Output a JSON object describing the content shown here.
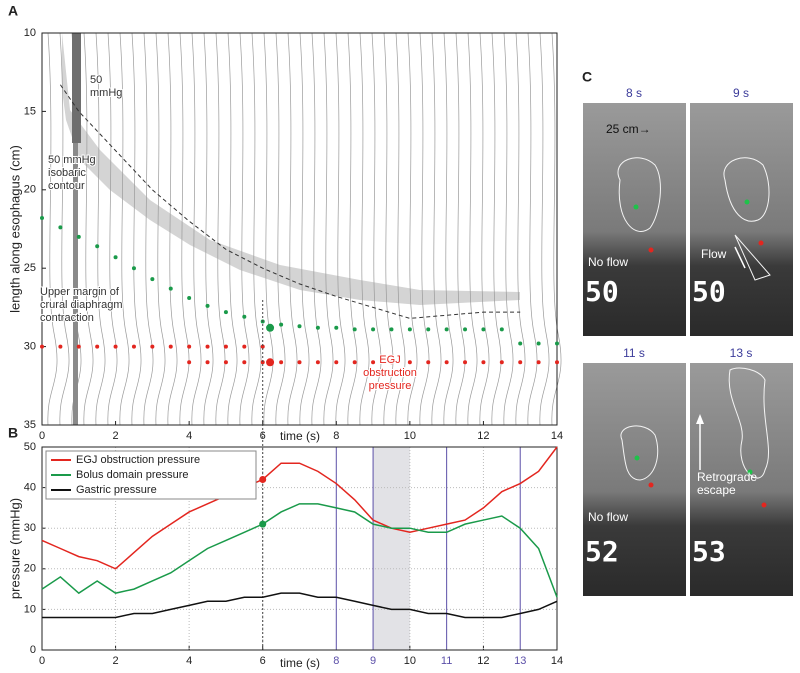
{
  "panel_labels": [
    "A",
    "B",
    "C"
  ],
  "chart_data": [
    {
      "type": "line",
      "y_label": "length along esophagus (cm)",
      "x_label": "time (s)",
      "xlim": [
        0,
        14
      ],
      "ylim": [
        10,
        35
      ],
      "y_inverted": true,
      "xticks": [
        0,
        2,
        4,
        6,
        8,
        10,
        12,
        14
      ],
      "yticks": [
        10,
        15,
        20,
        25,
        30,
        35
      ],
      "grid": false,
      "annotations": [
        {
          "lines": [
            "50",
            "mmHg"
          ],
          "color": "#333333"
        },
        {
          "lines": [
            "50 mmHg",
            "isobaric",
            "contour"
          ],
          "color": "#333333"
        },
        {
          "lines": [
            "Upper margin of",
            "crural diaphragm",
            "contraction"
          ],
          "color": "#333333"
        },
        {
          "lines": [
            "EGJ",
            "obstruction",
            "pressure"
          ],
          "color": "#e3261f"
        }
      ],
      "series": [
        {
          "color": "#333333",
          "dash": true,
          "x": [
            0.5,
            1,
            2,
            3,
            4,
            5,
            6,
            7,
            8,
            9,
            10,
            11,
            12,
            13
          ],
          "values": [
            13.3,
            15,
            17.5,
            20,
            22,
            23.8,
            25,
            26,
            26.8,
            27.5,
            28.2,
            28,
            27.8,
            27.8
          ]
        },
        {
          "color": "#1a9a4a",
          "marker": "small",
          "x": [
            0,
            0.5,
            1,
            1.5,
            2,
            2.5,
            3,
            3.5,
            4,
            4.5,
            5,
            5.5,
            6,
            6.5,
            7,
            7.5,
            8,
            8.5,
            9,
            9.5,
            10,
            10.5,
            11,
            11.5,
            12,
            12.5,
            13,
            13.5,
            14
          ],
          "values": [
            21.8,
            22.4,
            23,
            23.6,
            24.3,
            25,
            25.7,
            26.3,
            26.9,
            27.4,
            27.8,
            28.1,
            28.4,
            28.6,
            28.7,
            28.8,
            28.8,
            28.9,
            28.9,
            28.9,
            28.9,
            28.9,
            28.9,
            28.9,
            28.9,
            28.9,
            29.8,
            29.8,
            29.8
          ]
        },
        {
          "color": "#e3261f",
          "marker": "small",
          "x": [
            0,
            0.5,
            1,
            1.5,
            2,
            2.5,
            3,
            3.5,
            4,
            4.5,
            5,
            5.5,
            6
          ],
          "values": [
            30,
            30,
            30,
            30,
            30,
            30,
            30,
            30,
            30,
            30,
            30,
            30,
            30
          ]
        },
        {
          "color": "#e3261f",
          "marker": "small",
          "x": [
            4,
            4.5,
            5,
            5.5,
            6,
            6.5,
            7,
            7.5,
            8,
            8.5,
            9,
            9.5,
            10,
            10.5,
            11,
            11.5,
            12,
            12.5,
            13,
            13.5,
            14
          ],
          "values": [
            31,
            31,
            31,
            31,
            31,
            31,
            31,
            31,
            31,
            31,
            31,
            31,
            31,
            31,
            31,
            31,
            31,
            31,
            31,
            31,
            31
          ]
        },
        {
          "color": "#1a9a4a",
          "marker": "large",
          "x": [
            6.2
          ],
          "values": [
            28.8
          ]
        },
        {
          "color": "#e3261f",
          "marker": "large",
          "x": [
            6.2
          ],
          "values": [
            31
          ]
        }
      ]
    },
    {
      "type": "line",
      "y_label": "pressure (mmHg)",
      "x_label": "time (s)",
      "xlim": [
        0,
        14
      ],
      "ylim": [
        0,
        50
      ],
      "xticks": [
        0,
        2,
        4,
        6,
        10,
        12,
        14
      ],
      "yticks": [
        0,
        10,
        20,
        30,
        40,
        50
      ],
      "grid": true,
      "events": [
        8,
        9,
        11,
        13
      ],
      "event_color": "#5b4fa8",
      "shaded": [
        9,
        10
      ],
      "cursor": 6,
      "legend": "upper left",
      "x": [
        0,
        0.5,
        1,
        1.5,
        2,
        2.5,
        3,
        3.5,
        4,
        4.5,
        5,
        5.5,
        6,
        6.5,
        7,
        7.5,
        8,
        8.5,
        9,
        9.5,
        10,
        10.5,
        11,
        11.5,
        12,
        12.5,
        13,
        13.5,
        14
      ],
      "series": [
        {
          "name": "EGJ obstruction pressure",
          "color": "#e3261f",
          "values": [
            27,
            25,
            23,
            22,
            20,
            24,
            28,
            31,
            34,
            36,
            38,
            40,
            42,
            46,
            46,
            44,
            41,
            37,
            32,
            30,
            29,
            30,
            31,
            32,
            35,
            39,
            41,
            44,
            50
          ]
        },
        {
          "name": "Bolus domain pressure",
          "color": "#1a9a4a",
          "values": [
            15,
            18,
            14,
            17,
            14,
            15,
            17,
            19,
            22,
            25,
            27,
            29,
            31,
            34,
            36,
            36,
            35,
            34,
            31,
            30,
            30,
            29,
            29,
            31,
            32,
            33,
            30,
            25,
            13
          ]
        },
        {
          "name": "Gastric pressure",
          "color": "#111111",
          "values": [
            8,
            8,
            8,
            8,
            8,
            9,
            9,
            10,
            11,
            12,
            12,
            13,
            13,
            14,
            14,
            13,
            13,
            12,
            11,
            10,
            10,
            9,
            9,
            8,
            8,
            8,
            9,
            10,
            12
          ]
        }
      ],
      "points": [
        {
          "x": 6,
          "y": 42,
          "color": "#e3261f"
        },
        {
          "x": 6,
          "y": 31,
          "color": "#1a9a4a"
        }
      ]
    }
  ],
  "frames": [
    {
      "time": "8 s",
      "counter": "50",
      "notes": [
        [
          "25 cm→"
        ],
        [
          "No flow"
        ]
      ]
    },
    {
      "time": "9 s",
      "counter": "50",
      "notes": [
        [
          "Flow"
        ]
      ]
    },
    {
      "time": "11 s",
      "counter": "52",
      "notes": [
        [
          "No flow"
        ]
      ]
    },
    {
      "time": "13 s",
      "counter": "53",
      "notes": [
        [
          "Retrograde",
          "escape"
        ]
      ]
    }
  ]
}
